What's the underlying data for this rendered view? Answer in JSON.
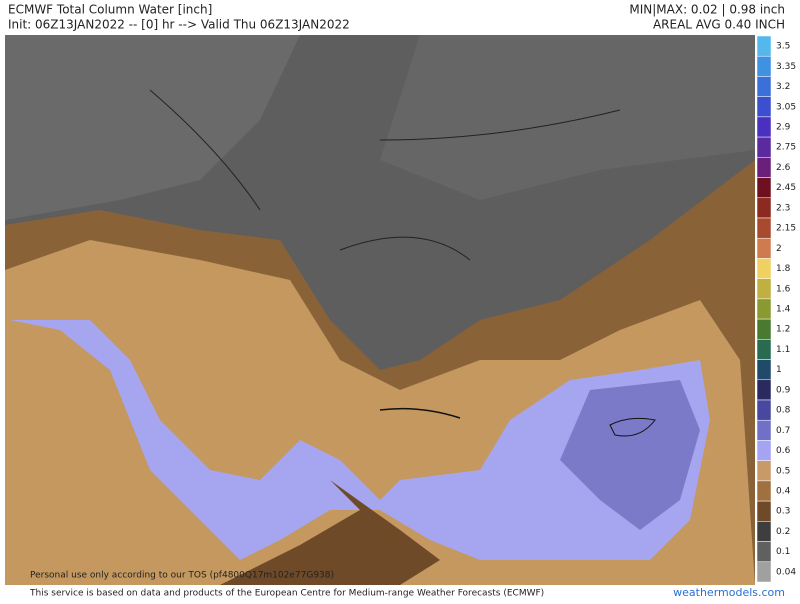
{
  "header": {
    "title": "ECMWF Total Column Water [inch]",
    "init": "Init: 06Z13JAN2022 -- [0] hr --> Valid Thu 06Z13JAN2022",
    "minmax": "MIN|MAX: 0.02 | 0.98 inch",
    "avg": "AREAL AVG 0.40 INCH"
  },
  "colorbar": {
    "labels": [
      "3.5",
      "3.35",
      "3.2",
      "3.05",
      "2.9",
      "2.75",
      "2.6",
      "2.45",
      "2.3",
      "2.15",
      "2",
      "1.8",
      "1.6",
      "1.4",
      "1.2",
      "1.1",
      "1",
      "0.9",
      "0.8",
      "0.7",
      "0.6",
      "0.5",
      "0.4",
      "0.3",
      "0.2",
      "0.1",
      "0.04"
    ],
    "colors": [
      "#55b8ec",
      "#3f92e2",
      "#3a70d8",
      "#3b4fcf",
      "#4a30bf",
      "#5a2a9e",
      "#6a1f7a",
      "#6e1020",
      "#8a2a20",
      "#a84a30",
      "#d07a50",
      "#f0d060",
      "#c0b040",
      "#8a9a30",
      "#4a7a30",
      "#2a6a50",
      "#204a6a",
      "#2a2a60",
      "#4848a0",
      "#7070c8",
      "#a4a4f2",
      "#c89a68",
      "#a07040",
      "#6e4a28",
      "#3e3e3e",
      "#606060",
      "#a0a0a0"
    ]
  },
  "watermark": "Personal use only according to our TOS (pf4800Q17m102e77G938)",
  "footer": {
    "credit": "This service is based on data and products of the European Centre for Medium-range Weather Forecasts (ECMWF)",
    "site": "weathermodels.com"
  }
}
